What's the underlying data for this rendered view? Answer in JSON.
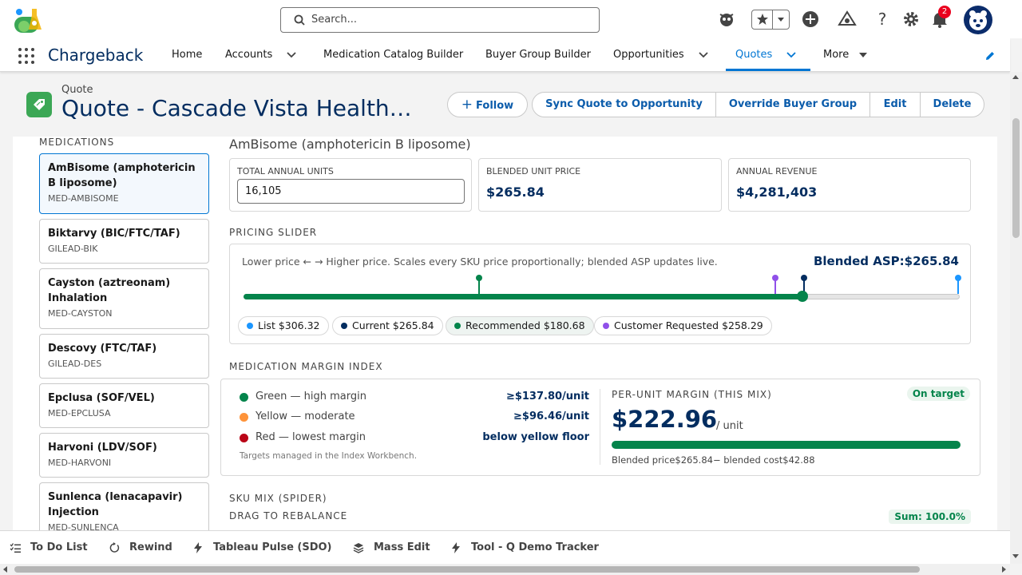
{
  "header": {
    "search_placeholder": "Search...",
    "notification_count": "2"
  },
  "nav": {
    "app_name": "Chargeback",
    "items": [
      {
        "label": "Home"
      },
      {
        "label": "Accounts"
      },
      {
        "label": "Medication Catalog Builder"
      },
      {
        "label": "Buyer Group Builder"
      },
      {
        "label": "Opportunities"
      },
      {
        "label": "Quotes"
      },
      {
        "label": "More"
      }
    ],
    "active": "Quotes"
  },
  "record": {
    "object_label": "Quote",
    "title": "Quote - Cascade Vista Health…",
    "buttons": {
      "follow": "Follow",
      "sync": "Sync Quote to Opportunity",
      "override": "Override Buyer Group",
      "edit": "Edit",
      "delete": "Delete"
    }
  },
  "medications": {
    "heading": "MEDICATIONS",
    "items": [
      {
        "name": "AmBisome (amphotericin B liposome)",
        "code": "MED-AMBISOME",
        "selected": true
      },
      {
        "name": "Biktarvy (BIC/FTC/TAF)",
        "code": "GILEAD-BIK"
      },
      {
        "name": "Cayston (aztreonam) Inhalation",
        "code": "MED-CAYSTON"
      },
      {
        "name": "Descovy (FTC/TAF)",
        "code": "GILEAD-DES"
      },
      {
        "name": "Epclusa (SOF/VEL)",
        "code": "MED-EPCLUSA"
      },
      {
        "name": "Harvoni (LDV/SOF)",
        "code": "MED-HARVONI"
      },
      {
        "name": "Sunlenca (lenacapavir) Injection",
        "code": "MED-SUNLENCA"
      }
    ]
  },
  "detail": {
    "drug_title": "AmBisome (amphotericin B liposome)",
    "kpis": {
      "units_label": "TOTAL ANNUAL UNITS",
      "units_value": "16,105",
      "price_label": "BLENDED UNIT PRICE",
      "price_value": "$265.84",
      "revenue_label": "ANNUAL REVENUE",
      "revenue_value": "$4,281,403"
    },
    "slider": {
      "heading": "PRICING SLIDER",
      "description": "Lower price ← → Higher price. Scales every SKU price proportionally; blended ASP updates live.",
      "asp_label": "Blended ASP:",
      "asp_value": "$265.84",
      "position": 0.78,
      "markers": {
        "recommended": 0.329,
        "customer_requested": 0.743,
        "current": 0.783,
        "list": 0.998
      },
      "chips": {
        "list": "List $306.32",
        "current": "Current $265.84",
        "recommended": "Recommended $180.68",
        "customer": "Customer Requested $258.29"
      },
      "colors": {
        "list": "#1b96ff",
        "current": "#032d60",
        "recommended": "#04844b",
        "customer": "#9050e9"
      }
    },
    "margin": {
      "heading": "MEDICATION MARGIN INDEX",
      "legend": [
        {
          "label": "Green — high margin",
          "value": "≥$137.80/unit",
          "color": "#04844b"
        },
        {
          "label": "Yellow — moderate",
          "value": "≥$96.46/unit",
          "color": "#fe9339"
        },
        {
          "label": "Red — lowest margin",
          "value": "below yellow floor",
          "color": "#ba0517"
        }
      ],
      "note": "Targets managed in the Index Workbench.",
      "per_unit_label": "PER-UNIT MARGIN (THIS MIX)",
      "status": "On target",
      "per_unit_value": "$222.96",
      "per_unit_suffix": "/ unit",
      "bar_fraction": 1.0,
      "footer": "Blended price$265.84− blended cost$42.88"
    },
    "sku_mix": {
      "heading": "SKU MIX (SPIDER)",
      "subheading": "DRAG TO REBALANCE",
      "sum": "Sum: 100.0%"
    }
  },
  "utility_bar": {
    "items": [
      "To Do List",
      "Rewind",
      "Tableau Pulse (SDO)",
      "Mass Edit",
      "Tool - Q Demo Tracker"
    ]
  }
}
